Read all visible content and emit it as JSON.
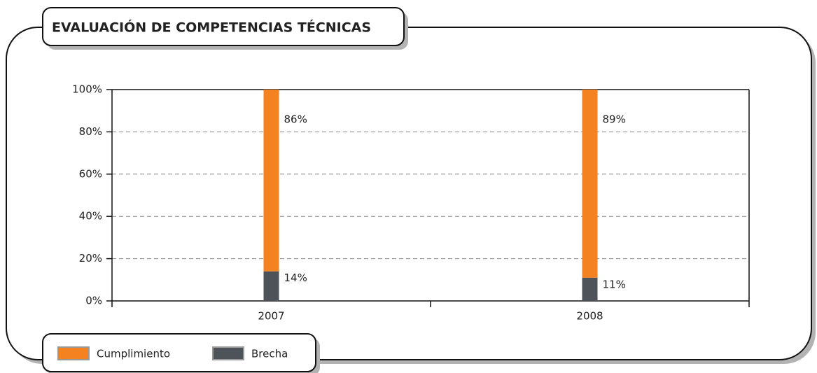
{
  "chart_data": {
    "type": "stacked_bar",
    "title": "EVALUACIÓN DE COMPETENCIAS TÉCNICAS",
    "categories": [
      "2007",
      "2008"
    ],
    "series": [
      {
        "name": "Cumplimiento",
        "color": "#f58220",
        "values": [
          86,
          89
        ],
        "value_labels": [
          "86%",
          "89%"
        ]
      },
      {
        "name": "Brecha",
        "color": "#4d5358",
        "values": [
          14,
          11
        ],
        "value_labels": [
          "14%",
          "11%"
        ]
      }
    ],
    "ylim": [
      0,
      100
    ],
    "yticks": [
      {
        "value": 0,
        "label": "0%"
      },
      {
        "value": 20,
        "label": "20%"
      },
      {
        "value": 40,
        "label": "40%"
      },
      {
        "value": 60,
        "label": "60%"
      },
      {
        "value": 80,
        "label": "80%"
      },
      {
        "value": 100,
        "label": "100%"
      }
    ],
    "grid": true,
    "legend": "bottom-left"
  }
}
